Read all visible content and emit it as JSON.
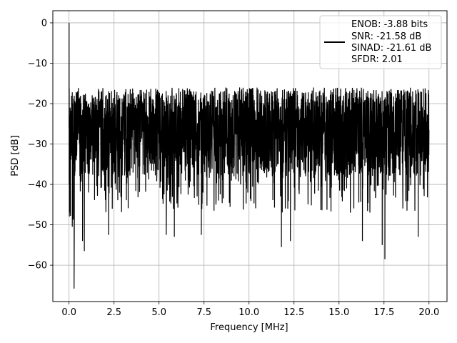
{
  "chart_data": {
    "type": "line",
    "title": "",
    "xlabel": "Frequency [MHz]",
    "ylabel": "PSD [dB]",
    "xlim": [
      -0.9,
      21.0
    ],
    "ylim": [
      -69,
      3
    ],
    "xticks": [
      0.0,
      2.5,
      5.0,
      7.5,
      10.0,
      12.5,
      15.0,
      17.5,
      20.0
    ],
    "xtick_labels": [
      "0.0",
      "2.5",
      "5.0",
      "7.5",
      "10.0",
      "12.5",
      "15.0",
      "17.5",
      "20.0"
    ],
    "yticks": [
      0,
      -10,
      -20,
      -30,
      -40,
      -50,
      -60
    ],
    "ytick_labels": [
      "0",
      "−10",
      "−20",
      "−30",
      "−40",
      "−50",
      "−60"
    ],
    "grid": true,
    "legend_position": "top-right",
    "series": [
      {
        "color": "#000000",
        "noise_floor_upper_db": -15,
        "noise_floor_median_db": -26,
        "noise_floor_lower_db": -45,
        "x_range": [
          0.0,
          20.0
        ],
        "peak": {
          "x": 0.0,
          "y": 0.0
        },
        "lowest_dip": {
          "x": 0.27,
          "y": -66
        },
        "notable_dips": [
          {
            "x": 0.28,
            "y": -65.8
          },
          {
            "x": 0.18,
            "y": -50.5
          },
          {
            "x": 0.75,
            "y": -54
          },
          {
            "x": 0.85,
            "y": -56.5
          },
          {
            "x": 2.2,
            "y": -52.5
          },
          {
            "x": 5.4,
            "y": -52.5
          },
          {
            "x": 5.85,
            "y": -53
          },
          {
            "x": 7.35,
            "y": -52.5
          },
          {
            "x": 11.8,
            "y": -55.5
          },
          {
            "x": 12.3,
            "y": -54
          },
          {
            "x": 16.3,
            "y": -54
          },
          {
            "x": 17.4,
            "y": -55
          },
          {
            "x": 17.55,
            "y": -58.5
          },
          {
            "x": 19.4,
            "y": -53
          }
        ]
      }
    ],
    "legend": {
      "entries": [
        "ENOB: -3.88 bits",
        "SNR: -21.58 dB",
        "SINAD: -21.61 dB",
        "SFDR: 2.01"
      ]
    }
  }
}
